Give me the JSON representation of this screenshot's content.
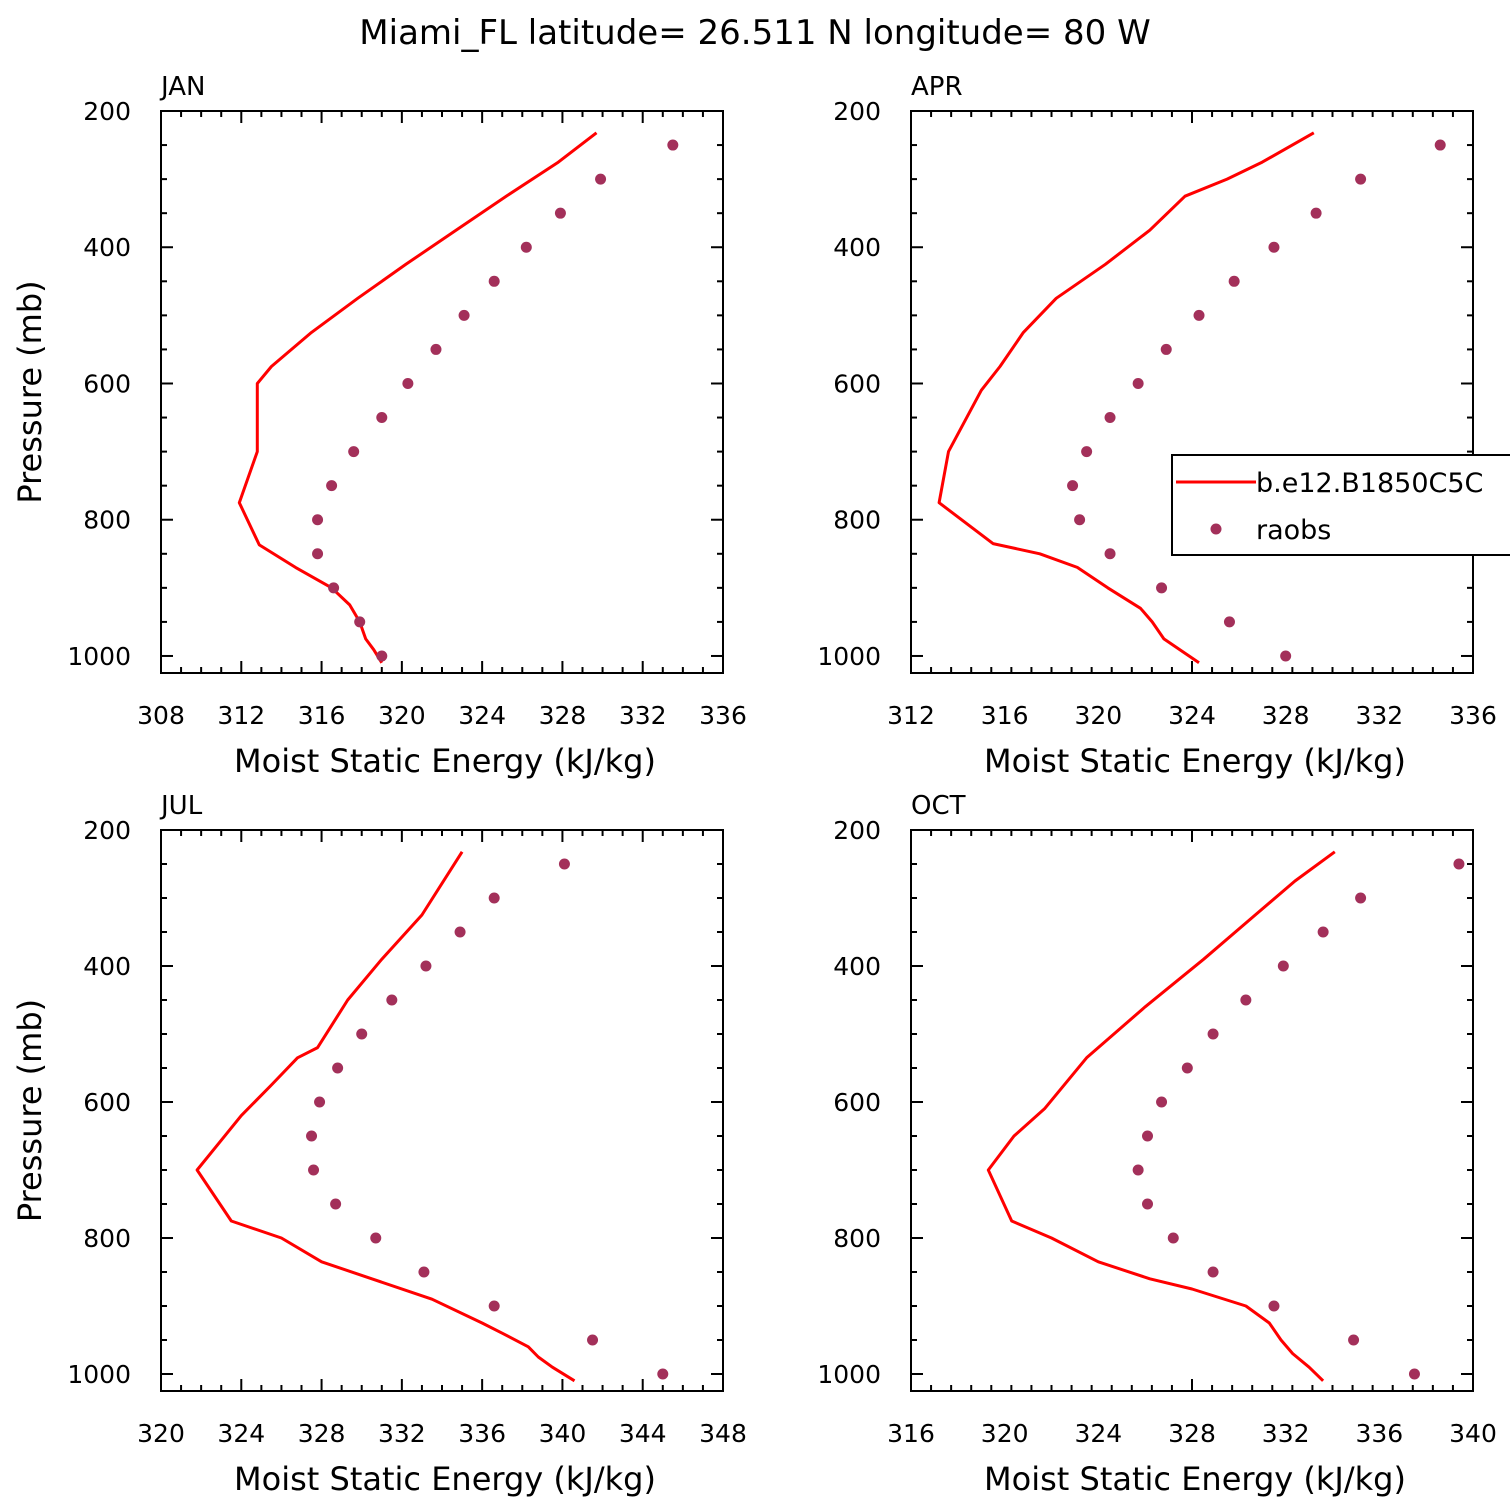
{
  "title": "Miami_FL  latitude= 26.511 N longitude= 80 W",
  "colors": {
    "model_line": "#ff0000",
    "raobs_marker": "#a3305a",
    "axes": "#000000"
  },
  "legend": {
    "placement": "right-middle of APR panel",
    "entries": [
      {
        "label": "b.e12.B1850C5C",
        "style": "line",
        "color": "#ff0000"
      },
      {
        "label": "raobs",
        "style": "marker",
        "color": "#a3305a"
      }
    ]
  },
  "chart_data": [
    {
      "type": "line",
      "panel_label": "JAN",
      "xlabel": "Moist Static Energy (kJ/kg)",
      "ylabel": "Pressure (mb)",
      "xlim": [
        308,
        336
      ],
      "ylim": [
        1025,
        200
      ],
      "xticks": [
        308,
        312,
        316,
        320,
        324,
        328,
        332,
        336
      ],
      "yticks": [
        200,
        400,
        600,
        800,
        1000
      ],
      "grid": false,
      "series": [
        {
          "name": "b.e12.B1850C5C",
          "style": "line",
          "points": [
            [
              329.7,
              232
            ],
            [
              327.8,
              275
            ],
            [
              325.2,
              325
            ],
            [
              322.7,
              375
            ],
            [
              320.2,
              425
            ],
            [
              317.8,
              475
            ],
            [
              315.5,
              525
            ],
            [
              313.5,
              575
            ],
            [
              312.8,
              600
            ],
            [
              312.8,
              700
            ],
            [
              311.9,
              775
            ],
            [
              312.9,
              837
            ],
            [
              314.7,
              870
            ],
            [
              316.5,
              900
            ],
            [
              317.4,
              925
            ],
            [
              317.9,
              950
            ],
            [
              318.2,
              975
            ],
            [
              318.6,
              991
            ],
            [
              319.0,
              1010
            ]
          ]
        },
        {
          "name": "raobs",
          "style": "markers",
          "points": [
            [
              333.5,
              250
            ],
            [
              329.9,
              300
            ],
            [
              327.9,
              350
            ],
            [
              326.2,
              400
            ],
            [
              324.6,
              450
            ],
            [
              323.1,
              500
            ],
            [
              321.7,
              550
            ],
            [
              320.3,
              600
            ],
            [
              319.0,
              650
            ],
            [
              317.6,
              700
            ],
            [
              316.5,
              750
            ],
            [
              315.8,
              800
            ],
            [
              315.8,
              850
            ],
            [
              316.6,
              900
            ],
            [
              317.9,
              950
            ],
            [
              319.0,
              1000
            ]
          ]
        }
      ]
    },
    {
      "type": "line",
      "panel_label": "APR",
      "xlabel": "Moist Static Energy (kJ/kg)",
      "ylabel": "",
      "xlim": [
        312,
        336
      ],
      "ylim": [
        1025,
        200
      ],
      "xticks": [
        312,
        316,
        320,
        324,
        328,
        332,
        336
      ],
      "yticks": [
        200,
        400,
        600,
        800,
        1000
      ],
      "grid": false,
      "series": [
        {
          "name": "b.e12.B1850C5C",
          "style": "line",
          "points": [
            [
              329.2,
              232
            ],
            [
              327.0,
              275
            ],
            [
              325.5,
              300
            ],
            [
              323.7,
              325
            ],
            [
              322.2,
              375
            ],
            [
              320.3,
              425
            ],
            [
              318.2,
              475
            ],
            [
              316.8,
              525
            ],
            [
              315.8,
              575
            ],
            [
              315.0,
              610
            ],
            [
              313.6,
              700
            ],
            [
              313.2,
              775
            ],
            [
              315.5,
              835
            ],
            [
              317.5,
              850
            ],
            [
              319.1,
              870
            ],
            [
              320.4,
              900
            ],
            [
              321.8,
              930
            ],
            [
              322.3,
              950
            ],
            [
              322.8,
              975
            ],
            [
              324.3,
              1010
            ]
          ]
        },
        {
          "name": "raobs",
          "style": "markers",
          "points": [
            [
              334.6,
              250
            ],
            [
              331.2,
              300
            ],
            [
              329.3,
              350
            ],
            [
              327.5,
              400
            ],
            [
              325.8,
              450
            ],
            [
              324.3,
              500
            ],
            [
              322.9,
              550
            ],
            [
              321.7,
              600
            ],
            [
              320.5,
              650
            ],
            [
              319.5,
              700
            ],
            [
              318.9,
              750
            ],
            [
              319.2,
              800
            ],
            [
              320.5,
              850
            ],
            [
              322.7,
              900
            ],
            [
              325.6,
              950
            ],
            [
              328.0,
              1000
            ]
          ]
        }
      ]
    },
    {
      "type": "line",
      "panel_label": "JUL",
      "xlabel": "Moist Static Energy (kJ/kg)",
      "ylabel": "Pressure (mb)",
      "xlim": [
        320,
        348
      ],
      "ylim": [
        1025,
        200
      ],
      "xticks": [
        320,
        324,
        328,
        332,
        336,
        340,
        344,
        348
      ],
      "yticks": [
        200,
        400,
        600,
        800,
        1000
      ],
      "grid": false,
      "series": [
        {
          "name": "b.e12.B1850C5C",
          "style": "line",
          "points": [
            [
              335.0,
              232
            ],
            [
              333.0,
              325
            ],
            [
              331.0,
              390
            ],
            [
              329.3,
              450
            ],
            [
              327.8,
              520
            ],
            [
              326.8,
              535
            ],
            [
              325.5,
              575
            ],
            [
              324.0,
              620
            ],
            [
              321.8,
              700
            ],
            [
              323.5,
              775
            ],
            [
              326.0,
              800
            ],
            [
              328.0,
              835
            ],
            [
              330.5,
              860
            ],
            [
              333.5,
              890
            ],
            [
              336.0,
              925
            ],
            [
              337.0,
              940
            ],
            [
              338.3,
              960
            ],
            [
              338.8,
              975
            ],
            [
              339.5,
              990
            ],
            [
              340.6,
              1010
            ]
          ]
        },
        {
          "name": "raobs",
          "style": "markers",
          "points": [
            [
              340.1,
              250
            ],
            [
              336.6,
              300
            ],
            [
              334.9,
              350
            ],
            [
              333.2,
              400
            ],
            [
              331.5,
              450
            ],
            [
              330.0,
              500
            ],
            [
              328.8,
              550
            ],
            [
              327.9,
              600
            ],
            [
              327.5,
              650
            ],
            [
              327.6,
              700
            ],
            [
              328.7,
              750
            ],
            [
              330.7,
              800
            ],
            [
              333.1,
              850
            ],
            [
              336.6,
              900
            ],
            [
              341.5,
              950
            ],
            [
              345.0,
              1000
            ]
          ]
        }
      ]
    },
    {
      "type": "line",
      "panel_label": "OCT",
      "xlabel": "Moist Static Energy (kJ/kg)",
      "ylabel": "",
      "xlim": [
        316,
        340
      ],
      "ylim": [
        1025,
        200
      ],
      "xticks": [
        316,
        320,
        324,
        328,
        332,
        336,
        340
      ],
      "yticks": [
        200,
        400,
        600,
        800,
        1000
      ],
      "grid": false,
      "series": [
        {
          "name": "b.e12.B1850C5C",
          "style": "line",
          "points": [
            [
              334.1,
              232
            ],
            [
              332.4,
              275
            ],
            [
              330.7,
              325
            ],
            [
              328.5,
              390
            ],
            [
              326.0,
              460
            ],
            [
              323.5,
              535
            ],
            [
              321.7,
              610
            ],
            [
              320.4,
              650
            ],
            [
              319.3,
              700
            ],
            [
              320.3,
              775
            ],
            [
              322.0,
              800
            ],
            [
              324.0,
              835
            ],
            [
              326.2,
              860
            ],
            [
              328.0,
              875
            ],
            [
              330.3,
              900
            ],
            [
              331.3,
              925
            ],
            [
              331.8,
              950
            ],
            [
              332.3,
              970
            ],
            [
              333.0,
              990
            ],
            [
              333.6,
              1010
            ]
          ]
        },
        {
          "name": "raobs",
          "style": "markers",
          "points": [
            [
              339.4,
              250
            ],
            [
              335.2,
              300
            ],
            [
              333.6,
              350
            ],
            [
              331.9,
              400
            ],
            [
              330.3,
              450
            ],
            [
              328.9,
              500
            ],
            [
              327.8,
              550
            ],
            [
              326.7,
              600
            ],
            [
              326.1,
              650
            ],
            [
              325.7,
              700
            ],
            [
              326.1,
              750
            ],
            [
              327.2,
              800
            ],
            [
              328.9,
              850
            ],
            [
              331.5,
              900
            ],
            [
              334.9,
              950
            ],
            [
              337.5,
              1000
            ]
          ]
        }
      ]
    }
  ]
}
